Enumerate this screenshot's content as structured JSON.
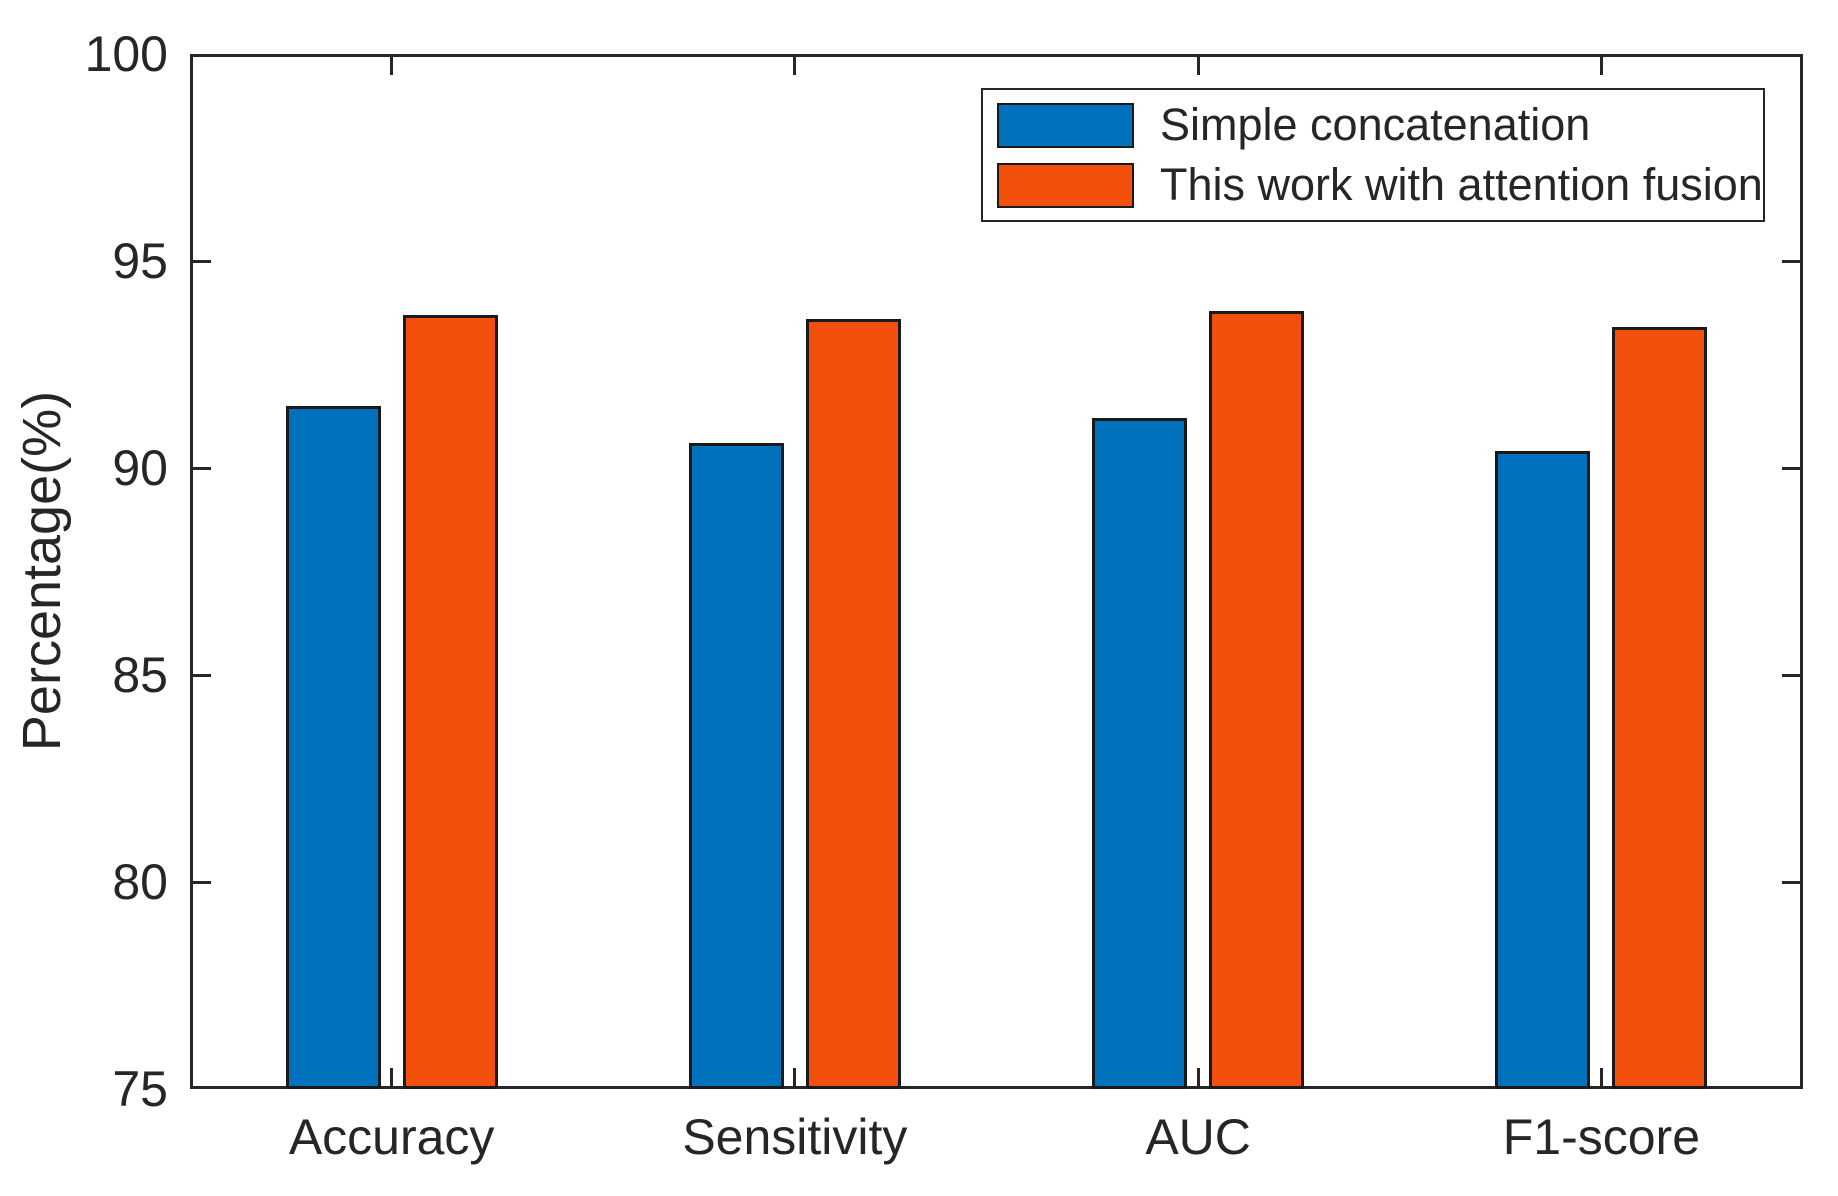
{
  "figure": {
    "background": "#ffffff",
    "axis_color": "#262626",
    "text_color": "#262626",
    "bar_edge_color": "#1a1a1a"
  },
  "chart_data": {
    "type": "bar",
    "title": "",
    "xlabel": "",
    "ylabel": "Percentage(%)",
    "categories": [
      "Accuracy",
      "Sensitivity",
      "AUC",
      "F1-score"
    ],
    "series": [
      {
        "name": "Simple concatenation",
        "color": "#0072BD",
        "values": [
          91.5,
          90.6,
          91.2,
          90.4
        ]
      },
      {
        "name": "This work with attention fusion",
        "color": "#F4500D",
        "values": [
          93.7,
          93.6,
          93.8,
          93.4
        ]
      }
    ],
    "ylim": [
      75,
      100
    ],
    "yticks": [
      75,
      80,
      85,
      90,
      95,
      100
    ],
    "grid": false,
    "legend": {
      "position": "upper-right-inside",
      "border": true
    }
  }
}
